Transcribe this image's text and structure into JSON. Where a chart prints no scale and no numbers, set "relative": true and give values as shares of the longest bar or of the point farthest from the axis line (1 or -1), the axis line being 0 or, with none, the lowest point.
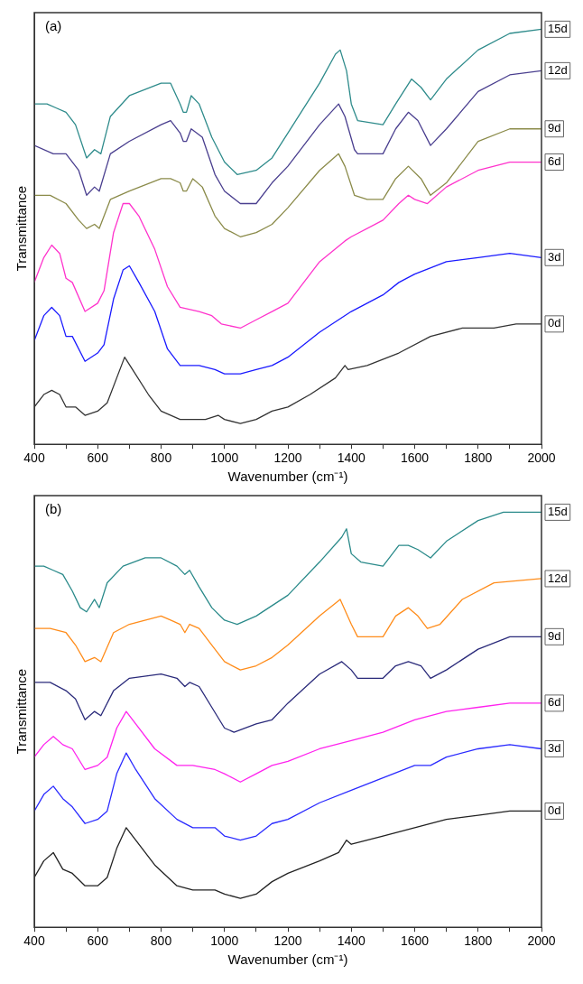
{
  "chart_data": [
    {
      "type": "line",
      "relative": true,
      "xlabel": "Wavenumber (cm⁻¹)",
      "ylabel": "Transmittance",
      "annotations": [
        "(a)"
      ],
      "legend": false,
      "grid": false,
      "xlim": [
        400,
        2000
      ],
      "xticks": [
        400,
        {
          "value": 500,
          "label": null
        },
        600,
        {
          "value": 700,
          "label": null
        },
        800,
        {
          "value": 900,
          "label": null
        },
        1000,
        {
          "value": 1100,
          "label": null
        },
        1200,
        {
          "value": 1300,
          "label": null
        },
        1400,
        {
          "value": 1500,
          "label": null
        },
        1600,
        {
          "value": 1700,
          "label": null
        },
        1800,
        {
          "value": 1900,
          "label": null
        },
        2000
      ],
      "series": [
        {
          "name": "15d",
          "color": "#2e8b8b",
          "x": [
            400,
            440,
            470,
            500,
            530,
            565,
            590,
            610,
            640,
            700,
            800,
            830,
            860,
            870,
            880,
            895,
            920,
            960,
            1000,
            1040,
            1100,
            1150,
            1200,
            1300,
            1350,
            1365,
            1385,
            1400,
            1420,
            1500,
            1540,
            1590,
            1620,
            1650,
            1700,
            1800,
            1900,
            2000
          ],
          "values": [
            0.82,
            0.82,
            0.81,
            0.8,
            0.77,
            0.69,
            0.71,
            0.7,
            0.79,
            0.84,
            0.87,
            0.87,
            0.82,
            0.8,
            0.8,
            0.84,
            0.82,
            0.74,
            0.68,
            0.65,
            0.66,
            0.69,
            0.75,
            0.87,
            0.94,
            0.95,
            0.9,
            0.82,
            0.78,
            0.77,
            0.82,
            0.88,
            0.86,
            0.83,
            0.88,
            0.95,
            0.99,
            1
          ]
        },
        {
          "name": "12d",
          "color": "#4a3f8f",
          "x": [
            400,
            460,
            500,
            540,
            565,
            590,
            605,
            640,
            700,
            800,
            830,
            860,
            870,
            880,
            895,
            930,
            970,
            1000,
            1050,
            1100,
            1150,
            1200,
            1300,
            1360,
            1380,
            1410,
            1420,
            1500,
            1540,
            1580,
            1610,
            1650,
            1700,
            1800,
            1900,
            2000
          ],
          "values": [
            0.72,
            0.7,
            0.7,
            0.66,
            0.6,
            0.62,
            0.61,
            0.7,
            0.73,
            0.77,
            0.78,
            0.75,
            0.73,
            0.73,
            0.76,
            0.74,
            0.65,
            0.61,
            0.58,
            0.58,
            0.63,
            0.67,
            0.77,
            0.82,
            0.79,
            0.71,
            0.7,
            0.7,
            0.76,
            0.8,
            0.78,
            0.72,
            0.76,
            0.85,
            0.89,
            0.9
          ]
        },
        {
          "name": "9d",
          "color": "#8b8b4a",
          "x": [
            400,
            450,
            500,
            540,
            565,
            590,
            605,
            640,
            700,
            800,
            830,
            860,
            870,
            880,
            900,
            930,
            970,
            1000,
            1050,
            1100,
            1150,
            1200,
            1300,
            1360,
            1380,
            1410,
            1450,
            1500,
            1540,
            1580,
            1620,
            1650,
            1700,
            1800,
            1900,
            2000
          ],
          "values": [
            0.6,
            0.6,
            0.58,
            0.54,
            0.52,
            0.53,
            0.52,
            0.59,
            0.61,
            0.64,
            0.64,
            0.63,
            0.61,
            0.61,
            0.64,
            0.62,
            0.55,
            0.52,
            0.5,
            0.51,
            0.53,
            0.57,
            0.66,
            0.7,
            0.67,
            0.6,
            0.59,
            0.59,
            0.64,
            0.67,
            0.64,
            0.6,
            0.63,
            0.73,
            0.76,
            0.76
          ]
        },
        {
          "name": "6d",
          "color": "#ff33cc",
          "x": [
            400,
            430,
            455,
            480,
            500,
            520,
            560,
            600,
            620,
            650,
            680,
            700,
            730,
            780,
            820,
            860,
            920,
            960,
            990,
            1050,
            1100,
            1150,
            1200,
            1300,
            1380,
            1400,
            1500,
            1550,
            1580,
            1600,
            1640,
            1700,
            1800,
            1900,
            2000
          ],
          "values": [
            0.39,
            0.45,
            0.48,
            0.46,
            0.4,
            0.39,
            0.32,
            0.34,
            0.37,
            0.51,
            0.58,
            0.58,
            0.55,
            0.47,
            0.38,
            0.33,
            0.32,
            0.31,
            0.29,
            0.28,
            0.3,
            0.32,
            0.34,
            0.44,
            0.49,
            0.5,
            0.54,
            0.58,
            0.6,
            0.59,
            0.58,
            0.62,
            0.66,
            0.68,
            0.68
          ]
        },
        {
          "name": "3d",
          "color": "#1a1aff",
          "x": [
            400,
            430,
            455,
            480,
            500,
            520,
            560,
            600,
            620,
            650,
            680,
            700,
            730,
            780,
            820,
            860,
            920,
            970,
            1000,
            1050,
            1100,
            1150,
            1200,
            1300,
            1400,
            1500,
            1550,
            1600,
            1700,
            1800,
            1900,
            2000
          ],
          "values": [
            0.25,
            0.31,
            0.33,
            0.31,
            0.26,
            0.26,
            0.2,
            0.22,
            0.24,
            0.35,
            0.42,
            0.43,
            0.39,
            0.32,
            0.23,
            0.19,
            0.19,
            0.18,
            0.17,
            0.17,
            0.18,
            0.19,
            0.21,
            0.27,
            0.32,
            0.36,
            0.39,
            0.41,
            0.44,
            0.45,
            0.46,
            0.45
          ]
        },
        {
          "name": "0d",
          "color": "#333333",
          "x": [
            400,
            430,
            455,
            480,
            500,
            530,
            560,
            600,
            630,
            660,
            685,
            710,
            760,
            800,
            860,
            940,
            980,
            1000,
            1050,
            1100,
            1150,
            1200,
            1270,
            1350,
            1380,
            1390,
            1450,
            1550,
            1650,
            1750,
            1850,
            1920,
            2000
          ],
          "values": [
            0.09,
            0.12,
            0.13,
            0.12,
            0.09,
            0.09,
            0.07,
            0.08,
            0.1,
            0.16,
            0.21,
            0.18,
            0.12,
            0.08,
            0.06,
            0.06,
            0.07,
            0.06,
            0.05,
            0.06,
            0.08,
            0.09,
            0.12,
            0.16,
            0.19,
            0.18,
            0.19,
            0.22,
            0.26,
            0.28,
            0.28,
            0.29,
            0.29
          ]
        }
      ]
    },
    {
      "type": "line",
      "relative": true,
      "xlabel": "Wavenumber (cm⁻¹)",
      "ylabel": "Transmittance",
      "annotations": [
        "(b)"
      ],
      "legend": false,
      "grid": false,
      "xlim": [
        400,
        2000
      ],
      "xticks": [
        400,
        {
          "value": 500,
          "label": null
        },
        600,
        {
          "value": 700,
          "label": null
        },
        800,
        {
          "value": 900,
          "label": null
        },
        1000,
        {
          "value": 1100,
          "label": null
        },
        1200,
        {
          "value": 1300,
          "label": null
        },
        1400,
        {
          "value": 1500,
          "label": null
        },
        1600,
        {
          "value": 1700,
          "label": null
        },
        1800,
        {
          "value": 1900,
          "label": null
        },
        2000
      ],
      "series": [
        {
          "name": "15d",
          "color": "#2a8a8a",
          "x": [
            400,
            430,
            460,
            490,
            520,
            545,
            565,
            590,
            605,
            630,
            680,
            750,
            800,
            850,
            875,
            890,
            920,
            960,
            1000,
            1040,
            1100,
            1200,
            1300,
            1370,
            1385,
            1400,
            1430,
            1500,
            1550,
            1580,
            1610,
            1650,
            1700,
            1800,
            1880,
            2000
          ],
          "values": [
            0.87,
            0.87,
            0.86,
            0.85,
            0.81,
            0.77,
            0.76,
            0.79,
            0.77,
            0.83,
            0.87,
            0.89,
            0.89,
            0.87,
            0.85,
            0.86,
            0.82,
            0.77,
            0.74,
            0.73,
            0.75,
            0.8,
            0.88,
            0.94,
            0.96,
            0.9,
            0.88,
            0.87,
            0.92,
            0.92,
            0.91,
            0.89,
            0.93,
            0.98,
            1.0,
            1.0
          ]
        },
        {
          "name": "12d",
          "color": "#ff8c1a",
          "x": [
            400,
            450,
            500,
            530,
            560,
            590,
            610,
            650,
            700,
            800,
            830,
            860,
            875,
            890,
            920,
            960,
            1000,
            1050,
            1100,
            1150,
            1200,
            1300,
            1365,
            1400,
            1420,
            1500,
            1540,
            1580,
            1610,
            1640,
            1680,
            1750,
            1850,
            2000
          ],
          "values": [
            0.72,
            0.72,
            0.71,
            0.68,
            0.64,
            0.65,
            0.64,
            0.71,
            0.73,
            0.75,
            0.74,
            0.73,
            0.71,
            0.73,
            0.72,
            0.68,
            0.64,
            0.62,
            0.63,
            0.65,
            0.68,
            0.75,
            0.79,
            0.73,
            0.7,
            0.7,
            0.75,
            0.77,
            0.75,
            0.72,
            0.73,
            0.79,
            0.83,
            0.84
          ]
        },
        {
          "name": "9d",
          "color": "#2a2a7a",
          "x": [
            400,
            450,
            500,
            530,
            560,
            590,
            610,
            650,
            700,
            800,
            850,
            875,
            890,
            920,
            960,
            1000,
            1030,
            1100,
            1150,
            1200,
            1300,
            1370,
            1400,
            1420,
            1500,
            1540,
            1580,
            1620,
            1650,
            1700,
            1800,
            1900,
            2000
          ],
          "values": [
            0.59,
            0.59,
            0.57,
            0.55,
            0.5,
            0.52,
            0.51,
            0.57,
            0.6,
            0.61,
            0.6,
            0.58,
            0.59,
            0.58,
            0.53,
            0.48,
            0.47,
            0.49,
            0.5,
            0.54,
            0.61,
            0.64,
            0.62,
            0.6,
            0.6,
            0.63,
            0.64,
            0.63,
            0.6,
            0.62,
            0.67,
            0.7,
            0.7
          ]
        },
        {
          "name": "6d",
          "color": "#ff22ee",
          "x": [
            400,
            430,
            460,
            490,
            520,
            560,
            600,
            630,
            660,
            690,
            720,
            780,
            850,
            900,
            970,
            1000,
            1050,
            1100,
            1150,
            1200,
            1300,
            1400,
            1500,
            1600,
            1700,
            1800,
            1900,
            2000
          ],
          "values": [
            0.41,
            0.44,
            0.46,
            0.44,
            0.43,
            0.38,
            0.39,
            0.41,
            0.48,
            0.52,
            0.49,
            0.43,
            0.39,
            0.39,
            0.38,
            0.37,
            0.35,
            0.37,
            0.39,
            0.4,
            0.43,
            0.45,
            0.47,
            0.5,
            0.52,
            0.53,
            0.54,
            0.54
          ]
        },
        {
          "name": "3d",
          "color": "#2a2aff",
          "x": [
            400,
            430,
            460,
            490,
            520,
            560,
            600,
            630,
            660,
            690,
            720,
            780,
            850,
            900,
            970,
            1000,
            1050,
            1100,
            1150,
            1200,
            1300,
            1400,
            1500,
            1600,
            1650,
            1700,
            1800,
            1900,
            2000
          ],
          "values": [
            0.28,
            0.32,
            0.34,
            0.31,
            0.29,
            0.25,
            0.26,
            0.28,
            0.37,
            0.42,
            0.38,
            0.31,
            0.26,
            0.24,
            0.24,
            0.22,
            0.21,
            0.22,
            0.25,
            0.26,
            0.3,
            0.33,
            0.36,
            0.39,
            0.39,
            0.41,
            0.43,
            0.44,
            0.43
          ]
        },
        {
          "name": "0d",
          "color": "#222222",
          "x": [
            400,
            430,
            460,
            490,
            520,
            560,
            600,
            630,
            660,
            690,
            720,
            780,
            850,
            900,
            970,
            1000,
            1050,
            1100,
            1150,
            1200,
            1300,
            1360,
            1385,
            1400,
            1500,
            1600,
            1700,
            1800,
            1900,
            2000
          ],
          "values": [
            0.12,
            0.16,
            0.18,
            0.14,
            0.13,
            0.1,
            0.1,
            0.12,
            0.19,
            0.24,
            0.21,
            0.15,
            0.1,
            0.09,
            0.09,
            0.08,
            0.07,
            0.08,
            0.11,
            0.13,
            0.16,
            0.18,
            0.21,
            0.2,
            0.22,
            0.24,
            0.26,
            0.27,
            0.28,
            0.28
          ]
        }
      ]
    }
  ]
}
